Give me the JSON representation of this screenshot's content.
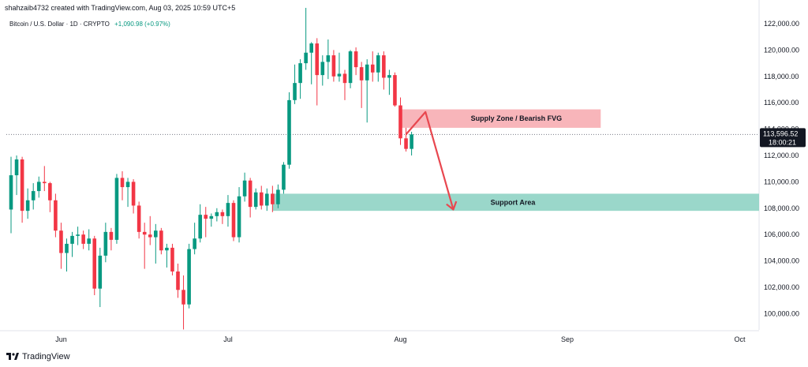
{
  "header": {
    "watermark_text": "shahzaib4732 created with TradingView.com, Aug 03, 2025 10:59 UTC+5",
    "symbol": "Bitcoin / U.S. Dollar · 1D · CRYPTO",
    "change": "+1,090.98 (+0.97%)"
  },
  "footer": {
    "logo_icon": "tradingview-logo-icon",
    "brand": "TradingView"
  },
  "colors": {
    "up": "#089981",
    "down": "#f23645",
    "supply": "#f7a8ae",
    "support": "#8fd3c4",
    "arrow": "#e8474f"
  },
  "chart_data": {
    "type": "candlestick",
    "y_axis_labels": [
      "122,000.00",
      "120,000.00",
      "118,000.00",
      "116,000.00",
      "114,000.00",
      "112,000.00",
      "110,000.00",
      "108,000.00",
      "106,000.00",
      "104,000.00",
      "102,000.00",
      "100,000.00"
    ],
    "y_axis_values": [
      122000,
      120000,
      118000,
      116000,
      114000,
      112000,
      110000,
      108000,
      106000,
      104000,
      102000,
      100000
    ],
    "ylim": [
      98500,
      123500
    ],
    "x_axis_labels": [
      "Jun",
      "Jul",
      "Aug",
      "Sep",
      "Oct"
    ],
    "x_axis_label_index": [
      9,
      39,
      70,
      100,
      131
    ],
    "current_price": {
      "price": 113596.52,
      "label": "113,596.52",
      "countdown": "18:00:21"
    },
    "supply_zone": {
      "label": "Supply Zone / Bearish FVG",
      "low": 114100,
      "high": 115500,
      "start_index": 70,
      "end_index": 106
    },
    "support_zone": {
      "label": "Support Area",
      "low": 107800,
      "high": 109100,
      "start_index": 47,
      "end_index": 136
    },
    "projection": [
      {
        "i": 71,
        "p": 113600
      },
      {
        "i": 74.5,
        "p": 115300
      },
      {
        "i": 79.5,
        "p": 107900
      }
    ],
    "candles": [
      {
        "o": 107900,
        "h": 111900,
        "l": 106100,
        "c": 110500
      },
      {
        "o": 110500,
        "h": 112000,
        "l": 109000,
        "c": 111700
      },
      {
        "o": 111700,
        "h": 111900,
        "l": 106900,
        "c": 107800
      },
      {
        "o": 107800,
        "h": 109500,
        "l": 107200,
        "c": 108600
      },
      {
        "o": 108600,
        "h": 109900,
        "l": 107900,
        "c": 109300
      },
      {
        "o": 109300,
        "h": 110400,
        "l": 108800,
        "c": 110000
      },
      {
        "o": 110000,
        "h": 111200,
        "l": 109300,
        "c": 109900
      },
      {
        "o": 109900,
        "h": 110000,
        "l": 107700,
        "c": 108600
      },
      {
        "o": 108600,
        "h": 109100,
        "l": 105800,
        "c": 106300
      },
      {
        "o": 106300,
        "h": 106900,
        "l": 103400,
        "c": 104600
      },
      {
        "o": 104600,
        "h": 105700,
        "l": 103200,
        "c": 105300
      },
      {
        "o": 105300,
        "h": 106200,
        "l": 104300,
        "c": 105900
      },
      {
        "o": 105900,
        "h": 106600,
        "l": 105200,
        "c": 106000
      },
      {
        "o": 106000,
        "h": 106300,
        "l": 104900,
        "c": 105300
      },
      {
        "o": 105300,
        "h": 106400,
        "l": 104800,
        "c": 105700
      },
      {
        "o": 105700,
        "h": 105900,
        "l": 101400,
        "c": 101900
      },
      {
        "o": 101900,
        "h": 105000,
        "l": 100500,
        "c": 104400
      },
      {
        "o": 104400,
        "h": 106900,
        "l": 103900,
        "c": 106200
      },
      {
        "o": 106200,
        "h": 106500,
        "l": 104800,
        "c": 105600
      },
      {
        "o": 105600,
        "h": 110600,
        "l": 105300,
        "c": 110300
      },
      {
        "o": 110300,
        "h": 110800,
        "l": 108600,
        "c": 109600
      },
      {
        "o": 109600,
        "h": 110300,
        "l": 108100,
        "c": 110000
      },
      {
        "o": 110000,
        "h": 110200,
        "l": 107600,
        "c": 108200
      },
      {
        "o": 108200,
        "h": 108500,
        "l": 105700,
        "c": 106200
      },
      {
        "o": 106200,
        "h": 106900,
        "l": 103400,
        "c": 106000
      },
      {
        "o": 106000,
        "h": 107400,
        "l": 105200,
        "c": 105800
      },
      {
        "o": 105800,
        "h": 106800,
        "l": 103800,
        "c": 106300
      },
      {
        "o": 106300,
        "h": 106500,
        "l": 104500,
        "c": 104800
      },
      {
        "o": 104800,
        "h": 105300,
        "l": 103500,
        "c": 105000
      },
      {
        "o": 105000,
        "h": 105300,
        "l": 102900,
        "c": 103200
      },
      {
        "o": 103200,
        "h": 103800,
        "l": 101200,
        "c": 101800
      },
      {
        "o": 101800,
        "h": 102900,
        "l": 98800,
        "c": 100700
      },
      {
        "o": 100700,
        "h": 105300,
        "l": 100400,
        "c": 104900
      },
      {
        "o": 104900,
        "h": 106900,
        "l": 104500,
        "c": 105700
      },
      {
        "o": 105700,
        "h": 108300,
        "l": 105400,
        "c": 107500
      },
      {
        "o": 107500,
        "h": 108100,
        "l": 105800,
        "c": 107200
      },
      {
        "o": 107200,
        "h": 107600,
        "l": 106600,
        "c": 107400
      },
      {
        "o": 107400,
        "h": 108000,
        "l": 107000,
        "c": 107700
      },
      {
        "o": 107700,
        "h": 107900,
        "l": 106800,
        "c": 107400
      },
      {
        "o": 107400,
        "h": 109000,
        "l": 106600,
        "c": 108400
      },
      {
        "o": 108400,
        "h": 108600,
        "l": 105500,
        "c": 105800
      },
      {
        "o": 105800,
        "h": 109600,
        "l": 105400,
        "c": 108900
      },
      {
        "o": 108900,
        "h": 110700,
        "l": 108500,
        "c": 110100
      },
      {
        "o": 110100,
        "h": 110300,
        "l": 107300,
        "c": 108100
      },
      {
        "o": 108100,
        "h": 109500,
        "l": 107900,
        "c": 109200
      },
      {
        "o": 109200,
        "h": 109700,
        "l": 107900,
        "c": 108200
      },
      {
        "o": 108200,
        "h": 109500,
        "l": 107800,
        "c": 109100
      },
      {
        "o": 109100,
        "h": 109700,
        "l": 107700,
        "c": 108300
      },
      {
        "o": 108300,
        "h": 109800,
        "l": 108000,
        "c": 109400
      },
      {
        "o": 109400,
        "h": 111500,
        "l": 109100,
        "c": 111300
      },
      {
        "o": 111300,
        "h": 116800,
        "l": 111000,
        "c": 116200
      },
      {
        "o": 116200,
        "h": 118900,
        "l": 115900,
        "c": 117500
      },
      {
        "o": 117500,
        "h": 119300,
        "l": 116300,
        "c": 119000
      },
      {
        "o": 119000,
        "h": 123200,
        "l": 118500,
        "c": 119800
      },
      {
        "o": 119800,
        "h": 120600,
        "l": 117400,
        "c": 120500
      },
      {
        "o": 120500,
        "h": 120900,
        "l": 115800,
        "c": 118100
      },
      {
        "o": 118100,
        "h": 119600,
        "l": 117300,
        "c": 119100
      },
      {
        "o": 119100,
        "h": 120800,
        "l": 117800,
        "c": 119600
      },
      {
        "o": 119600,
        "h": 120000,
        "l": 117600,
        "c": 118000
      },
      {
        "o": 118000,
        "h": 119800,
        "l": 117600,
        "c": 118200
      },
      {
        "o": 118200,
        "h": 118500,
        "l": 116200,
        "c": 117500
      },
      {
        "o": 117500,
        "h": 120000,
        "l": 117100,
        "c": 119900
      },
      {
        "o": 119900,
        "h": 120200,
        "l": 118100,
        "c": 118700
      },
      {
        "o": 118700,
        "h": 119100,
        "l": 115600,
        "c": 117700
      },
      {
        "o": 117700,
        "h": 119300,
        "l": 114500,
        "c": 118900
      },
      {
        "o": 118900,
        "h": 119900,
        "l": 117600,
        "c": 118300
      },
      {
        "o": 118300,
        "h": 119800,
        "l": 117600,
        "c": 119600
      },
      {
        "o": 119600,
        "h": 119900,
        "l": 117000,
        "c": 117900
      },
      {
        "o": 117900,
        "h": 118500,
        "l": 116600,
        "c": 118100
      },
      {
        "o": 118100,
        "h": 118300,
        "l": 115700,
        "c": 115800
      },
      {
        "o": 115800,
        "h": 116400,
        "l": 112800,
        "c": 113300
      },
      {
        "o": 113300,
        "h": 114100,
        "l": 112300,
        "c": 112500
      },
      {
        "o": 112500,
        "h": 113800,
        "l": 112000,
        "c": 113600
      }
    ]
  }
}
